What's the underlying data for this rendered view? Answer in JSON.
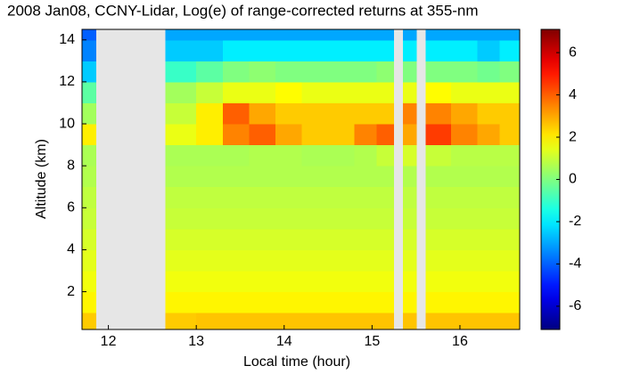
{
  "chart_data": {
    "type": "heatmap",
    "title": "2008 Jan08, CCNY-Lidar, Log(e) of range-corrected returns at 355-nm",
    "xlabel": "Local time (hour)",
    "ylabel": "Altitude (km)",
    "xlim": [
      11.7,
      16.68
    ],
    "xticks": [
      12,
      13,
      14,
      15,
      16
    ],
    "ylim": [
      0.2,
      14.5
    ],
    "yticks": [
      2,
      4,
      6,
      8,
      10,
      12,
      14
    ],
    "clim": [
      -7.1,
      7.1
    ],
    "cticks": [
      -6,
      -4,
      -2,
      0,
      2,
      4,
      6
    ],
    "colormap": "jet",
    "missing_color": "#e6e6e6",
    "x_edges": [
      11.7,
      11.86,
      12.65,
      13.0,
      13.3,
      13.6,
      13.9,
      14.2,
      14.5,
      14.8,
      15.05,
      15.25,
      15.35,
      15.51,
      15.61,
      15.9,
      16.2,
      16.45,
      16.68
    ],
    "y_edges": [
      0.2,
      1,
      2,
      3,
      4,
      5,
      6,
      7,
      8,
      9,
      10,
      11,
      12,
      13,
      14,
      14.5
    ],
    "z": [
      [
        2.5,
        null,
        2.5,
        2.6,
        2.6,
        2.6,
        2.6,
        2.6,
        2.6,
        2.6,
        2.6,
        null,
        2.6,
        null,
        2.6,
        2.6,
        2.6,
        2.6
      ],
      [
        1.9,
        null,
        1.9,
        1.9,
        1.9,
        1.9,
        1.9,
        1.9,
        1.9,
        1.9,
        1.9,
        null,
        1.9,
        null,
        1.9,
        1.9,
        1.9,
        1.9
      ],
      [
        1.6,
        null,
        1.6,
        1.6,
        1.6,
        1.6,
        1.6,
        1.6,
        1.6,
        1.6,
        1.6,
        null,
        1.6,
        null,
        1.6,
        1.6,
        1.6,
        1.6
      ],
      [
        1.4,
        null,
        1.4,
        1.4,
        1.4,
        1.4,
        1.4,
        1.4,
        1.4,
        1.4,
        1.4,
        null,
        1.4,
        null,
        1.4,
        1.4,
        1.4,
        1.4
      ],
      [
        1.2,
        null,
        1.2,
        1.2,
        1.2,
        1.2,
        1.2,
        1.2,
        1.2,
        1.2,
        1.2,
        null,
        1.2,
        null,
        1.2,
        1.2,
        1.2,
        1.2
      ],
      [
        1.0,
        null,
        1.0,
        1.0,
        1.0,
        1.0,
        1.0,
        1.0,
        1.0,
        1.0,
        1.0,
        null,
        1.0,
        null,
        1.0,
        1.0,
        1.0,
        1.0
      ],
      [
        0.9,
        null,
        0.9,
        0.9,
        0.9,
        0.9,
        0.9,
        0.9,
        0.9,
        0.9,
        0.9,
        null,
        0.9,
        null,
        0.9,
        0.9,
        0.9,
        0.9
      ],
      [
        0.7,
        null,
        0.7,
        0.7,
        0.7,
        0.7,
        0.7,
        0.7,
        0.7,
        0.7,
        0.7,
        null,
        0.7,
        null,
        0.7,
        0.7,
        0.7,
        0.7
      ],
      [
        0.6,
        null,
        0.6,
        0.6,
        0.6,
        0.7,
        0.7,
        0.6,
        0.6,
        0.7,
        1.0,
        null,
        1.2,
        null,
        1.0,
        0.8,
        0.8,
        0.8
      ],
      [
        2.0,
        null,
        1.5,
        2.0,
        3.5,
        4.0,
        3.0,
        2.5,
        2.5,
        3.5,
        4.0,
        null,
        3.0,
        null,
        4.5,
        3.5,
        3.0,
        2.5
      ],
      [
        0.5,
        null,
        1.0,
        2.0,
        4.0,
        3.0,
        2.5,
        2.5,
        2.5,
        2.5,
        2.5,
        null,
        3.5,
        null,
        3.5,
        3.0,
        2.5,
        2.5
      ],
      [
        -0.5,
        null,
        0.5,
        1.0,
        1.5,
        1.5,
        1.8,
        1.5,
        1.5,
        1.5,
        1.5,
        null,
        1.5,
        null,
        1.8,
        1.5,
        1.5,
        1.5
      ],
      [
        -2.5,
        null,
        -1.0,
        -0.5,
        0.0,
        0.2,
        0.0,
        0.0,
        0.0,
        0.0,
        0.2,
        null,
        0.0,
        null,
        0.0,
        0.0,
        -0.2,
        0.0
      ],
      [
        -3.5,
        null,
        -2.5,
        -2.5,
        -2.0,
        -2.0,
        -2.0,
        -2.0,
        -2.0,
        -2.0,
        -2.0,
        null,
        -2.0,
        null,
        -2.0,
        -2.0,
        -2.5,
        -2.0
      ],
      [
        -4,
        null,
        -3,
        -3,
        -3,
        -3,
        -3,
        -3,
        -3,
        -3,
        -3,
        null,
        -3,
        null,
        -3,
        -3,
        -3,
        -3
      ]
    ]
  }
}
